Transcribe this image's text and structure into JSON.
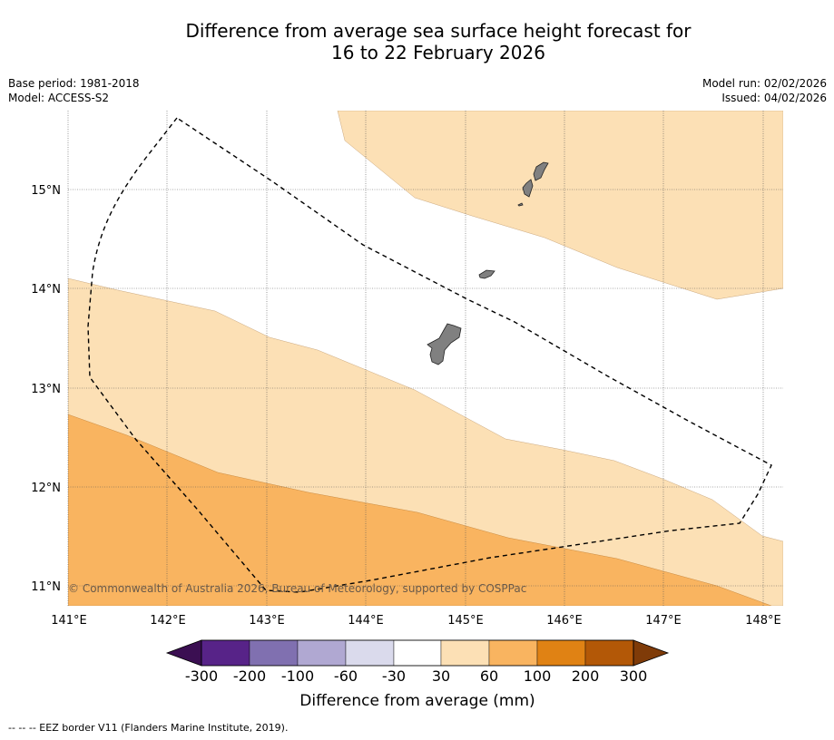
{
  "header": {
    "title_line1": "Difference from average sea surface height forecast for",
    "title_line2": "16 to 22 February 2026",
    "base_period": "Base period: 1981-2018",
    "model": "Model: ACCESS-S2",
    "model_run": "Model run: 02/02/2026",
    "issued": "Issued: 04/02/2026"
  },
  "map": {
    "lon_range": [
      141.0,
      148.2
    ],
    "lat_range": [
      10.8,
      15.8
    ],
    "lon_ticks": [
      "141°E",
      "142°E",
      "143°E",
      "144°E",
      "145°E",
      "146°E",
      "147°E",
      "148°E"
    ],
    "lat_ticks": [
      "11°N",
      "12°N",
      "13°N",
      "14°N",
      "15°N"
    ],
    "copyright": "© Commonwealth of Australia 2026, Bureau of Meteorology, supported by COSPPac",
    "fill_categories": {
      "category_30_60": "#fce0b5",
      "category_60_100": "#f9b460"
    }
  },
  "colorbar": {
    "title": "Difference from average (mm)",
    "tick_labels": [
      "-300",
      "-200",
      "-100",
      "-60",
      "-30",
      "30",
      "60",
      "100",
      "200",
      "300"
    ],
    "colors": [
      "#3b0f52",
      "#572388",
      "#8070b0",
      "#b0a8d2",
      "#dadaec",
      "#ffffff",
      "#fce0b5",
      "#f9b460",
      "#e08214",
      "#b35807",
      "#7f3b08"
    ]
  },
  "footnote": "-- -- -- EEZ border V11 (Flanders Marine Institute, 2019)."
}
